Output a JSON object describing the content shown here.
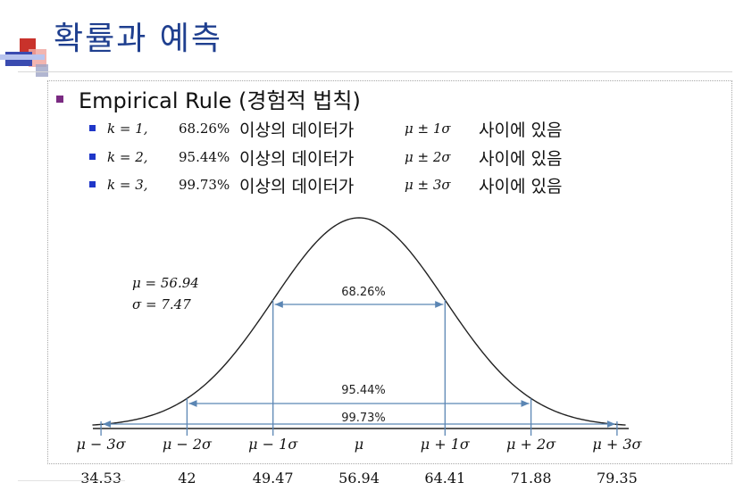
{
  "slide": {
    "title": "확률과 예측",
    "heading": "Empirical Rule (경험적 법칙)",
    "rules": [
      {
        "k": "k = 1,",
        "pct": "68.26%",
        "text1": "이상의 데이터가",
        "range": "μ ± 1σ",
        "text2": "사이에 있음"
      },
      {
        "k": "k = 2,",
        "pct": "95.44%",
        "text1": "이상의 데이터가",
        "range": "μ ± 2σ",
        "text2": "사이에 있음"
      },
      {
        "k": "k = 3,",
        "pct": "99.73%",
        "text1": "이상의 데이터가",
        "range": "μ ± 3σ",
        "text2": "사이에 있음"
      }
    ]
  },
  "chart_data": {
    "type": "area",
    "description_free": true,
    "mu": 56.94,
    "sigma": 7.47,
    "param_labels": [
      "μ = 56.94",
      "σ = 7.47"
    ],
    "intervals": [
      {
        "k": 1,
        "label": "68.26%",
        "from": 49.47,
        "to": 64.41
      },
      {
        "k": 2,
        "label": "95.44%",
        "from": 42,
        "to": 71.88
      },
      {
        "k": 3,
        "label": "99.73%",
        "from": 34.53,
        "to": 79.35
      }
    ],
    "tick_positions_sigma": [
      -3,
      -2,
      -1,
      0,
      1,
      2,
      3
    ],
    "tick_labels": [
      "μ − 3σ",
      "μ − 2σ",
      "μ − 1σ",
      "μ",
      "μ + 1σ",
      "μ + 2σ",
      "μ + 3σ"
    ],
    "value_labels": [
      "34.53",
      "42",
      "49.47",
      "56.94",
      "64.41",
      "71.88",
      "79.35"
    ],
    "colors": {
      "curve": "#222222",
      "arrow": "#5b86b4",
      "axis": "#222222"
    }
  }
}
